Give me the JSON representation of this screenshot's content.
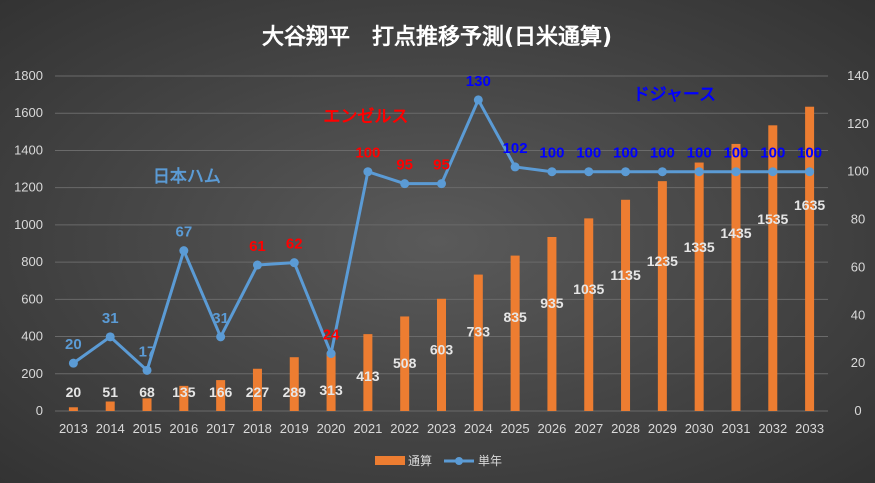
{
  "chart_data": {
    "type": "bar",
    "title": "大谷翔平　打点推移予測(日米通算)",
    "categories": [
      "2013",
      "2014",
      "2015",
      "2016",
      "2017",
      "2018",
      "2019",
      "2020",
      "2021",
      "2022",
      "2023",
      "2024",
      "2025",
      "2026",
      "2027",
      "2028",
      "2029",
      "2030",
      "2031",
      "2032",
      "2033"
    ],
    "series": [
      {
        "name": "通算",
        "type": "bar",
        "axis": "left",
        "color": "#ed7d31",
        "values": [
          20,
          51,
          68,
          135,
          166,
          227,
          289,
          313,
          413,
          508,
          603,
          733,
          835,
          935,
          1035,
          1135,
          1235,
          1335,
          1435,
          1535,
          1635
        ]
      },
      {
        "name": "単年",
        "type": "line",
        "axis": "right",
        "color": "#5b9bd5",
        "values": [
          20,
          31,
          17,
          67,
          31,
          61,
          62,
          24,
          100,
          95,
          95,
          130,
          102,
          100,
          100,
          100,
          100,
          100,
          100,
          100,
          100
        ],
        "label_colors": [
          "#5b9bd5",
          "#5b9bd5",
          "#5b9bd5",
          "#5b9bd5",
          "#5b9bd5",
          "#ff0000",
          "#ff0000",
          "#ff0000",
          "#ff0000",
          "#ff0000",
          "#ff0000",
          "#0000ff",
          "#0000ff",
          "#0000ff",
          "#0000ff",
          "#0000ff",
          "#0000ff",
          "#0000ff",
          "#0000ff",
          "#0000ff",
          "#0000ff"
        ]
      }
    ],
    "y_left": {
      "min": 0,
      "max": 1800,
      "step": 200
    },
    "y_right": {
      "min": 0,
      "max": 140,
      "step": 20
    },
    "annotations": [
      {
        "text": "日本ハム",
        "color": "#5b9bd5"
      },
      {
        "text": "エンゼルス",
        "color": "#ff0000"
      },
      {
        "text": "ドジャース",
        "color": "#0000ff"
      }
    ],
    "legend_position": "bottom",
    "grid": true
  }
}
